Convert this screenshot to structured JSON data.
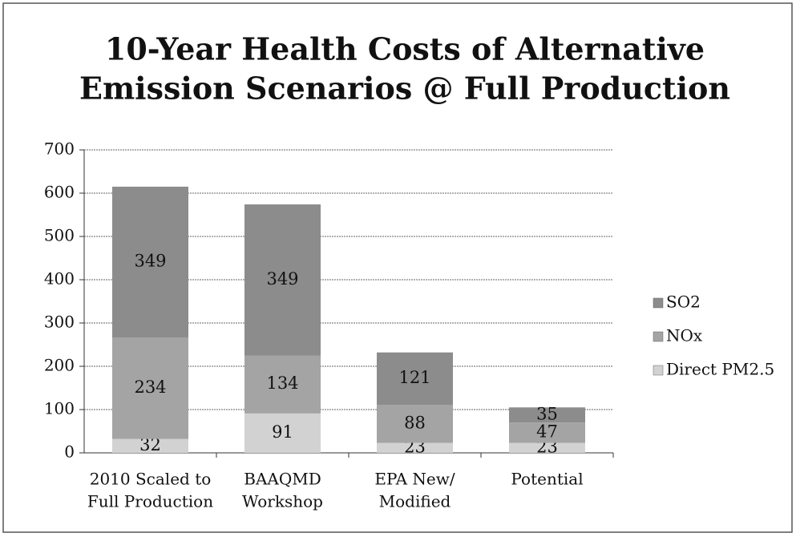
{
  "chart_data": {
    "type": "stacked_bar",
    "title": [
      "10-Year Health Costs of Alternative",
      "Emission Scenarios @ Full Production"
    ],
    "categories": [
      [
        "2010 Scaled to",
        "Full Production"
      ],
      [
        "BAAQMD",
        "Workshop"
      ],
      [
        "EPA New/",
        "Modified"
      ],
      [
        "Potential"
      ]
    ],
    "series": [
      {
        "name": "Direct PM2.5",
        "color": "#d2d2d2",
        "values": [
          32,
          91,
          23,
          23
        ]
      },
      {
        "name": "NOx",
        "color": "#a4a4a4",
        "values": [
          234,
          134,
          88,
          47
        ]
      },
      {
        "name": "SO2",
        "color": "#8c8c8c",
        "values": [
          349,
          349,
          121,
          35
        ]
      }
    ],
    "ylim": [
      0,
      700
    ],
    "yticks": [
      0,
      100,
      200,
      300,
      400,
      500,
      600,
      700
    ],
    "grid": true,
    "legend": "right"
  }
}
